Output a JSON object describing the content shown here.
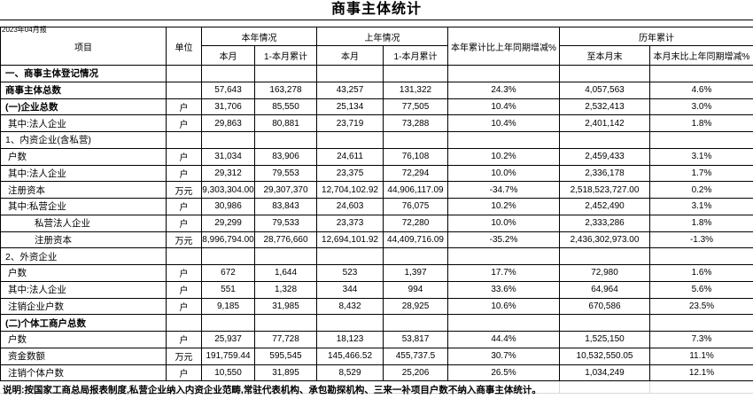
{
  "report": {
    "title": "商事主体统计",
    "period": "2023年04月报",
    "note": "说明:按国家工商总局报表制度,私营企业纳入内资企业范畴,常驻代表机构、承包勘探机构、三来一补项目户数不纳入商事主体统计。"
  },
  "colors": {
    "border": "#000000",
    "gridline": "#d9d9d9",
    "background": "#ffffff",
    "text": "#000000"
  },
  "table": {
    "headers": {
      "item": "项目",
      "unit": "单位",
      "cur_year": "本年情况",
      "prev_year": "上年情况",
      "yoy": "本年累计比上年同期增减%",
      "hist": "历年累计",
      "month": "本月",
      "ytd": "1-本月累计",
      "prev_month": "本月",
      "prev_ytd": "1-本月累计",
      "to_month_end": "至本月末",
      "hist_yoy": "本月末比上年同期增减%"
    },
    "rows": [
      {
        "label": "一、商事主体登记情况",
        "unit": "",
        "bold": true,
        "indent": 0,
        "cells": [
          "",
          "",
          "",
          "",
          "",
          "",
          ""
        ]
      },
      {
        "label": "商事主体总数",
        "unit": "",
        "bold": true,
        "indent": 0,
        "cells": [
          "57,643",
          "163,278",
          "43,257",
          "131,322",
          "24.3%",
          "4,057,563",
          "4.6%"
        ]
      },
      {
        "label": "(一)企业总数",
        "unit": "户",
        "bold": true,
        "indent": 0,
        "cells": [
          "31,706",
          "85,550",
          "25,134",
          "77,505",
          "10.4%",
          "2,532,413",
          "3.0%"
        ]
      },
      {
        "label": "其中:法人企业",
        "unit": "户",
        "bold": false,
        "indent": 1,
        "cells": [
          "29,863",
          "80,881",
          "23,719",
          "73,288",
          "10.4%",
          "2,401,142",
          "1.8%"
        ]
      },
      {
        "label": "1、内资企业(含私营)",
        "unit": "",
        "bold": false,
        "indent": 0,
        "cells": [
          "",
          "",
          "",
          "",
          "",
          "",
          ""
        ]
      },
      {
        "label": "户数",
        "unit": "户",
        "bold": false,
        "indent": 1,
        "cells": [
          "31,034",
          "83,906",
          "24,611",
          "76,108",
          "10.2%",
          "2,459,433",
          "3.1%"
        ]
      },
      {
        "label": "其中:法人企业",
        "unit": "户",
        "bold": false,
        "indent": 1,
        "cells": [
          "29,312",
          "79,553",
          "23,375",
          "72,294",
          "10.0%",
          "2,336,178",
          "1.7%"
        ]
      },
      {
        "label": "注册资本",
        "unit": "万元",
        "bold": false,
        "indent": 1,
        "cells": [
          "9,303,304.00",
          "29,307,370",
          "12,704,102.92",
          "44,906,117.09",
          "-34.7%",
          "2,518,523,727.00",
          "0.2%"
        ]
      },
      {
        "label": "其中:私营企业",
        "unit": "户",
        "bold": false,
        "indent": 1,
        "cells": [
          "30,986",
          "83,843",
          "24,603",
          "76,075",
          "10.2%",
          "2,452,490",
          "3.1%"
        ]
      },
      {
        "label": "私营法人企业",
        "unit": "户",
        "bold": false,
        "indent": 2,
        "cells": [
          "29,299",
          "79,533",
          "23,373",
          "72,280",
          "10.0%",
          "2,333,286",
          "1.8%"
        ]
      },
      {
        "label": "注册资本",
        "unit": "万元",
        "bold": false,
        "indent": 2,
        "cells": [
          "8,996,794.00",
          "28,776,660",
          "12,694,101.92",
          "44,409,716.09",
          "-35.2%",
          "2,436,302,973.00",
          "-1.3%"
        ]
      },
      {
        "label": "2、外资企业",
        "unit": "",
        "bold": false,
        "indent": 0,
        "cells": [
          "",
          "",
          "",
          "",
          "",
          "",
          ""
        ]
      },
      {
        "label": "户数",
        "unit": "户",
        "bold": false,
        "indent": 1,
        "cells": [
          "672",
          "1,644",
          "523",
          "1,397",
          "17.7%",
          "72,980",
          "1.6%"
        ]
      },
      {
        "label": "其中:法人企业",
        "unit": "户",
        "bold": false,
        "indent": 1,
        "cells": [
          "551",
          "1,328",
          "344",
          "994",
          "33.6%",
          "64,964",
          "5.6%"
        ]
      },
      {
        "label": "注销企业户数",
        "unit": "户",
        "bold": false,
        "indent": 1,
        "cells": [
          "9,185",
          "31,985",
          "8,432",
          "28,925",
          "10.6%",
          "670,586",
          "23.5%"
        ]
      },
      {
        "label": "(二)个体工商户总数",
        "unit": "",
        "bold": true,
        "indent": 0,
        "cells": [
          "",
          "",
          "",
          "",
          "",
          "",
          ""
        ]
      },
      {
        "label": "户数",
        "unit": "户",
        "bold": false,
        "indent": 1,
        "cells": [
          "25,937",
          "77,728",
          "18,123",
          "53,817",
          "44.4%",
          "1,525,150",
          "7.3%"
        ]
      },
      {
        "label": "资金数额",
        "unit": "万元",
        "bold": false,
        "indent": 1,
        "cells": [
          "191,759.44",
          "595,545",
          "145,466.52",
          "455,737.5",
          "30.7%",
          "10,532,550.05",
          "11.1%"
        ]
      },
      {
        "label": "注销个体户数",
        "unit": "户",
        "bold": false,
        "indent": 1,
        "cells": [
          "10,550",
          "31,895",
          "8,529",
          "25,206",
          "26.5%",
          "1,034,249",
          "12.1%"
        ]
      }
    ]
  }
}
